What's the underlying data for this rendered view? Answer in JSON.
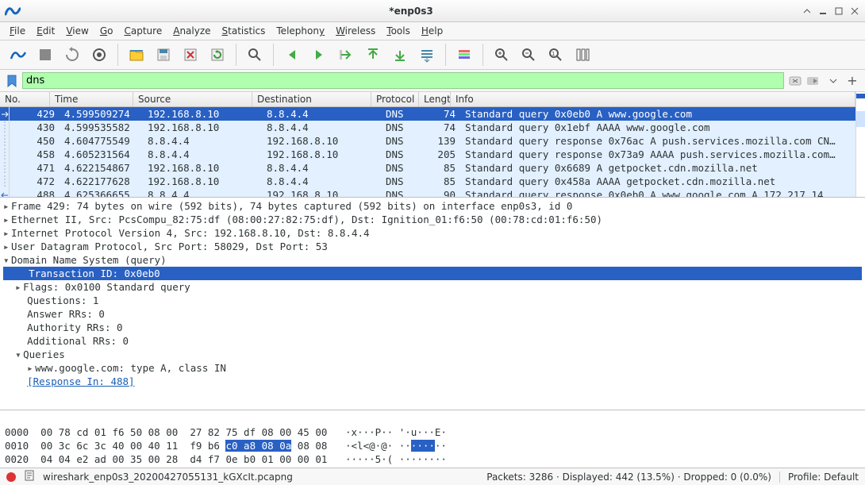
{
  "window": {
    "title": "*enp0s3"
  },
  "menu": [
    "File",
    "Edit",
    "View",
    "Go",
    "Capture",
    "Analyze",
    "Statistics",
    "Telephony",
    "Wireless",
    "Tools",
    "Help"
  ],
  "filter": {
    "value": "dns"
  },
  "columns": {
    "no": "No.",
    "time": "Time",
    "src": "Source",
    "dst": "Destination",
    "proto": "Protocol",
    "len": "Length",
    "info": "Info"
  },
  "packets": [
    {
      "no": "429",
      "time": "4.599509274",
      "src": "192.168.8.10",
      "dst": "8.8.4.4",
      "proto": "DNS",
      "len": "74",
      "info": "Standard query 0x0eb0 A www.google.com",
      "sel": true,
      "arrow": "first"
    },
    {
      "no": "430",
      "time": "4.599535582",
      "src": "192.168.8.10",
      "dst": "8.8.4.4",
      "proto": "DNS",
      "len": "74",
      "info": "Standard query 0x1ebf AAAA www.google.com",
      "rel": true
    },
    {
      "no": "450",
      "time": "4.604775549",
      "src": "8.8.4.4",
      "dst": "192.168.8.10",
      "proto": "DNS",
      "len": "139",
      "info": "Standard query response 0x76ac A push.services.mozilla.com CN…",
      "rel": true
    },
    {
      "no": "458",
      "time": "4.605231564",
      "src": "8.8.4.4",
      "dst": "192.168.8.10",
      "proto": "DNS",
      "len": "205",
      "info": "Standard query response 0x73a9 AAAA push.services.mozilla.com…",
      "rel": true
    },
    {
      "no": "471",
      "time": "4.622154867",
      "src": "192.168.8.10",
      "dst": "8.8.4.4",
      "proto": "DNS",
      "len": "85",
      "info": "Standard query 0x6689 A getpocket.cdn.mozilla.net",
      "rel": true
    },
    {
      "no": "472",
      "time": "4.622177628",
      "src": "192.168.8.10",
      "dst": "8.8.4.4",
      "proto": "DNS",
      "len": "85",
      "info": "Standard query 0x458a AAAA getpocket.cdn.mozilla.net",
      "rel": true
    },
    {
      "no": "488",
      "time": "4.625366655",
      "src": "8.8.4.4",
      "dst": "192.168.8.10",
      "proto": "DNS",
      "len": "90",
      "info": "Standard query response 0x0eb0 A www.google.com A 172.217.14…",
      "rel": true,
      "arrow": "last"
    }
  ],
  "tree": {
    "frame": "Frame 429: 74 bytes on wire (592 bits), 74 bytes captured (592 bits) on interface enp0s3, id 0",
    "eth": "Ethernet II, Src: PcsCompu_82:75:df (08:00:27:82:75:df), Dst: Ignition_01:f6:50 (00:78:cd:01:f6:50)",
    "ip": "Internet Protocol Version 4, Src: 192.168.8.10, Dst: 8.8.4.4",
    "udp": "User Datagram Protocol, Src Port: 58029, Dst Port: 53",
    "dns": "Domain Name System (query)",
    "txid": "Transaction ID: 0x0eb0",
    "flags": "Flags: 0x0100 Standard query",
    "questions": "Questions: 1",
    "answer": "Answer RRs: 0",
    "auth": "Authority RRs: 0",
    "addl": "Additional RRs: 0",
    "queries": "Queries",
    "query": "www.google.com: type A, class IN",
    "resp": "[Response In: 488]"
  },
  "hex": {
    "l0_off": "0000",
    "l0_hex": "00 78 cd 01 f6 50 08 00  27 82 75 df 08 00 45 00",
    "l0_asc": "·x···P·· '·u···E·",
    "l1_off": "0010",
    "l1_hex_a": "00 3c 6c 3c 40 00 40 11  f9 b6 ",
    "l1_hex_sel": "c0 a8 08 0a",
    "l1_hex_b": " 08 08",
    "l1_asc_a": "·<l<@·@· ··",
    "l1_asc_sel": "····",
    "l1_asc_b": "··",
    "l2_off": "0020",
    "l2_hex": "04 04 e2 ad 00 35 00 28  d4 f7 0e b0 01 00 00 01",
    "l2_asc": "·····5·( ········"
  },
  "status": {
    "file": "wireshark_enp0s3_20200427055131_kGXcIt.pcapng",
    "counts": "Packets: 3286 · Displayed: 442 (13.5%) · Dropped: 0 (0.0%)",
    "profile": "Profile: Default"
  }
}
